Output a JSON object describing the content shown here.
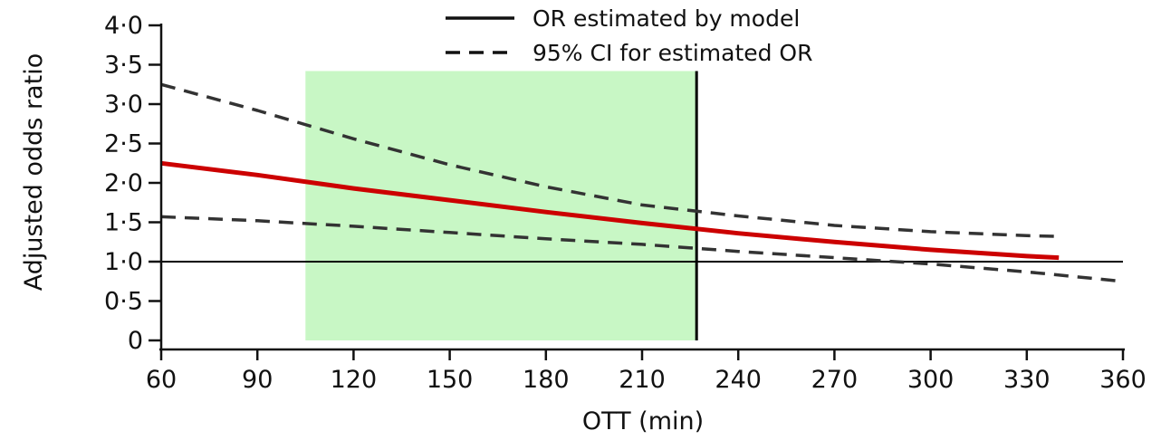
{
  "chart_data": {
    "type": "line",
    "title": "",
    "xlabel": "OTT (min)",
    "ylabel": "Adjusted odds ratio",
    "xlim": [
      60,
      360
    ],
    "ylim": [
      0,
      4.0
    ],
    "x_ticks": [
      60,
      90,
      120,
      150,
      180,
      210,
      240,
      270,
      300,
      330,
      360
    ],
    "x_tick_labels": [
      "60",
      "90",
      "120",
      "150",
      "180",
      "210",
      "240",
      "270",
      "300",
      "330",
      "360"
    ],
    "y_ticks": [
      0,
      0.5,
      1.0,
      1.5,
      2.0,
      2.5,
      3.0,
      3.5,
      4.0
    ],
    "y_tick_labels": [
      "0",
      "0·5",
      "1·0",
      "1·5",
      "2·0",
      "2·5",
      "3·0",
      "3·5",
      "4·0"
    ],
    "grid": false,
    "legend": {
      "placement": "top",
      "entries": [
        {
          "label": "OR estimated by model",
          "style": "solid"
        },
        {
          "label": "95% CI for estimated OR",
          "style": "dashed"
        }
      ]
    },
    "reference_line": {
      "y": 1.0,
      "x_range": [
        60,
        360
      ],
      "color": "#000000"
    },
    "shaded_region": {
      "x_range": [
        105,
        227
      ],
      "y_top": 3.42,
      "color": "#c8f7c5"
    },
    "vertical_line": {
      "x": 227,
      "y_range": [
        0,
        3.42
      ],
      "color": "#000000"
    },
    "series": [
      {
        "name": "OR estimated by model",
        "style": "solid",
        "color": "#cc0000",
        "x": [
          60,
          90,
          120,
          150,
          180,
          210,
          240,
          270,
          300,
          330,
          340
        ],
        "y": [
          2.25,
          2.1,
          1.93,
          1.78,
          1.63,
          1.49,
          1.36,
          1.25,
          1.15,
          1.07,
          1.05
        ]
      },
      {
        "name": "95% CI for estimated OR",
        "style": "dashed",
        "color": "#333333",
        "x": [
          60,
          90,
          120,
          150,
          180,
          210,
          240,
          270,
          300,
          330,
          340
        ],
        "y": [
          3.25,
          2.92,
          2.56,
          2.23,
          1.95,
          1.72,
          1.58,
          1.46,
          1.38,
          1.33,
          1.32
        ]
      },
      {
        "name": "95% CI for estimated OR",
        "style": "dashed",
        "color": "#333333",
        "x": [
          60,
          90,
          120,
          150,
          180,
          210,
          240,
          270,
          300,
          330,
          360
        ],
        "y": [
          1.57,
          1.52,
          1.45,
          1.37,
          1.29,
          1.22,
          1.13,
          1.05,
          0.97,
          0.87,
          0.75
        ]
      }
    ]
  }
}
